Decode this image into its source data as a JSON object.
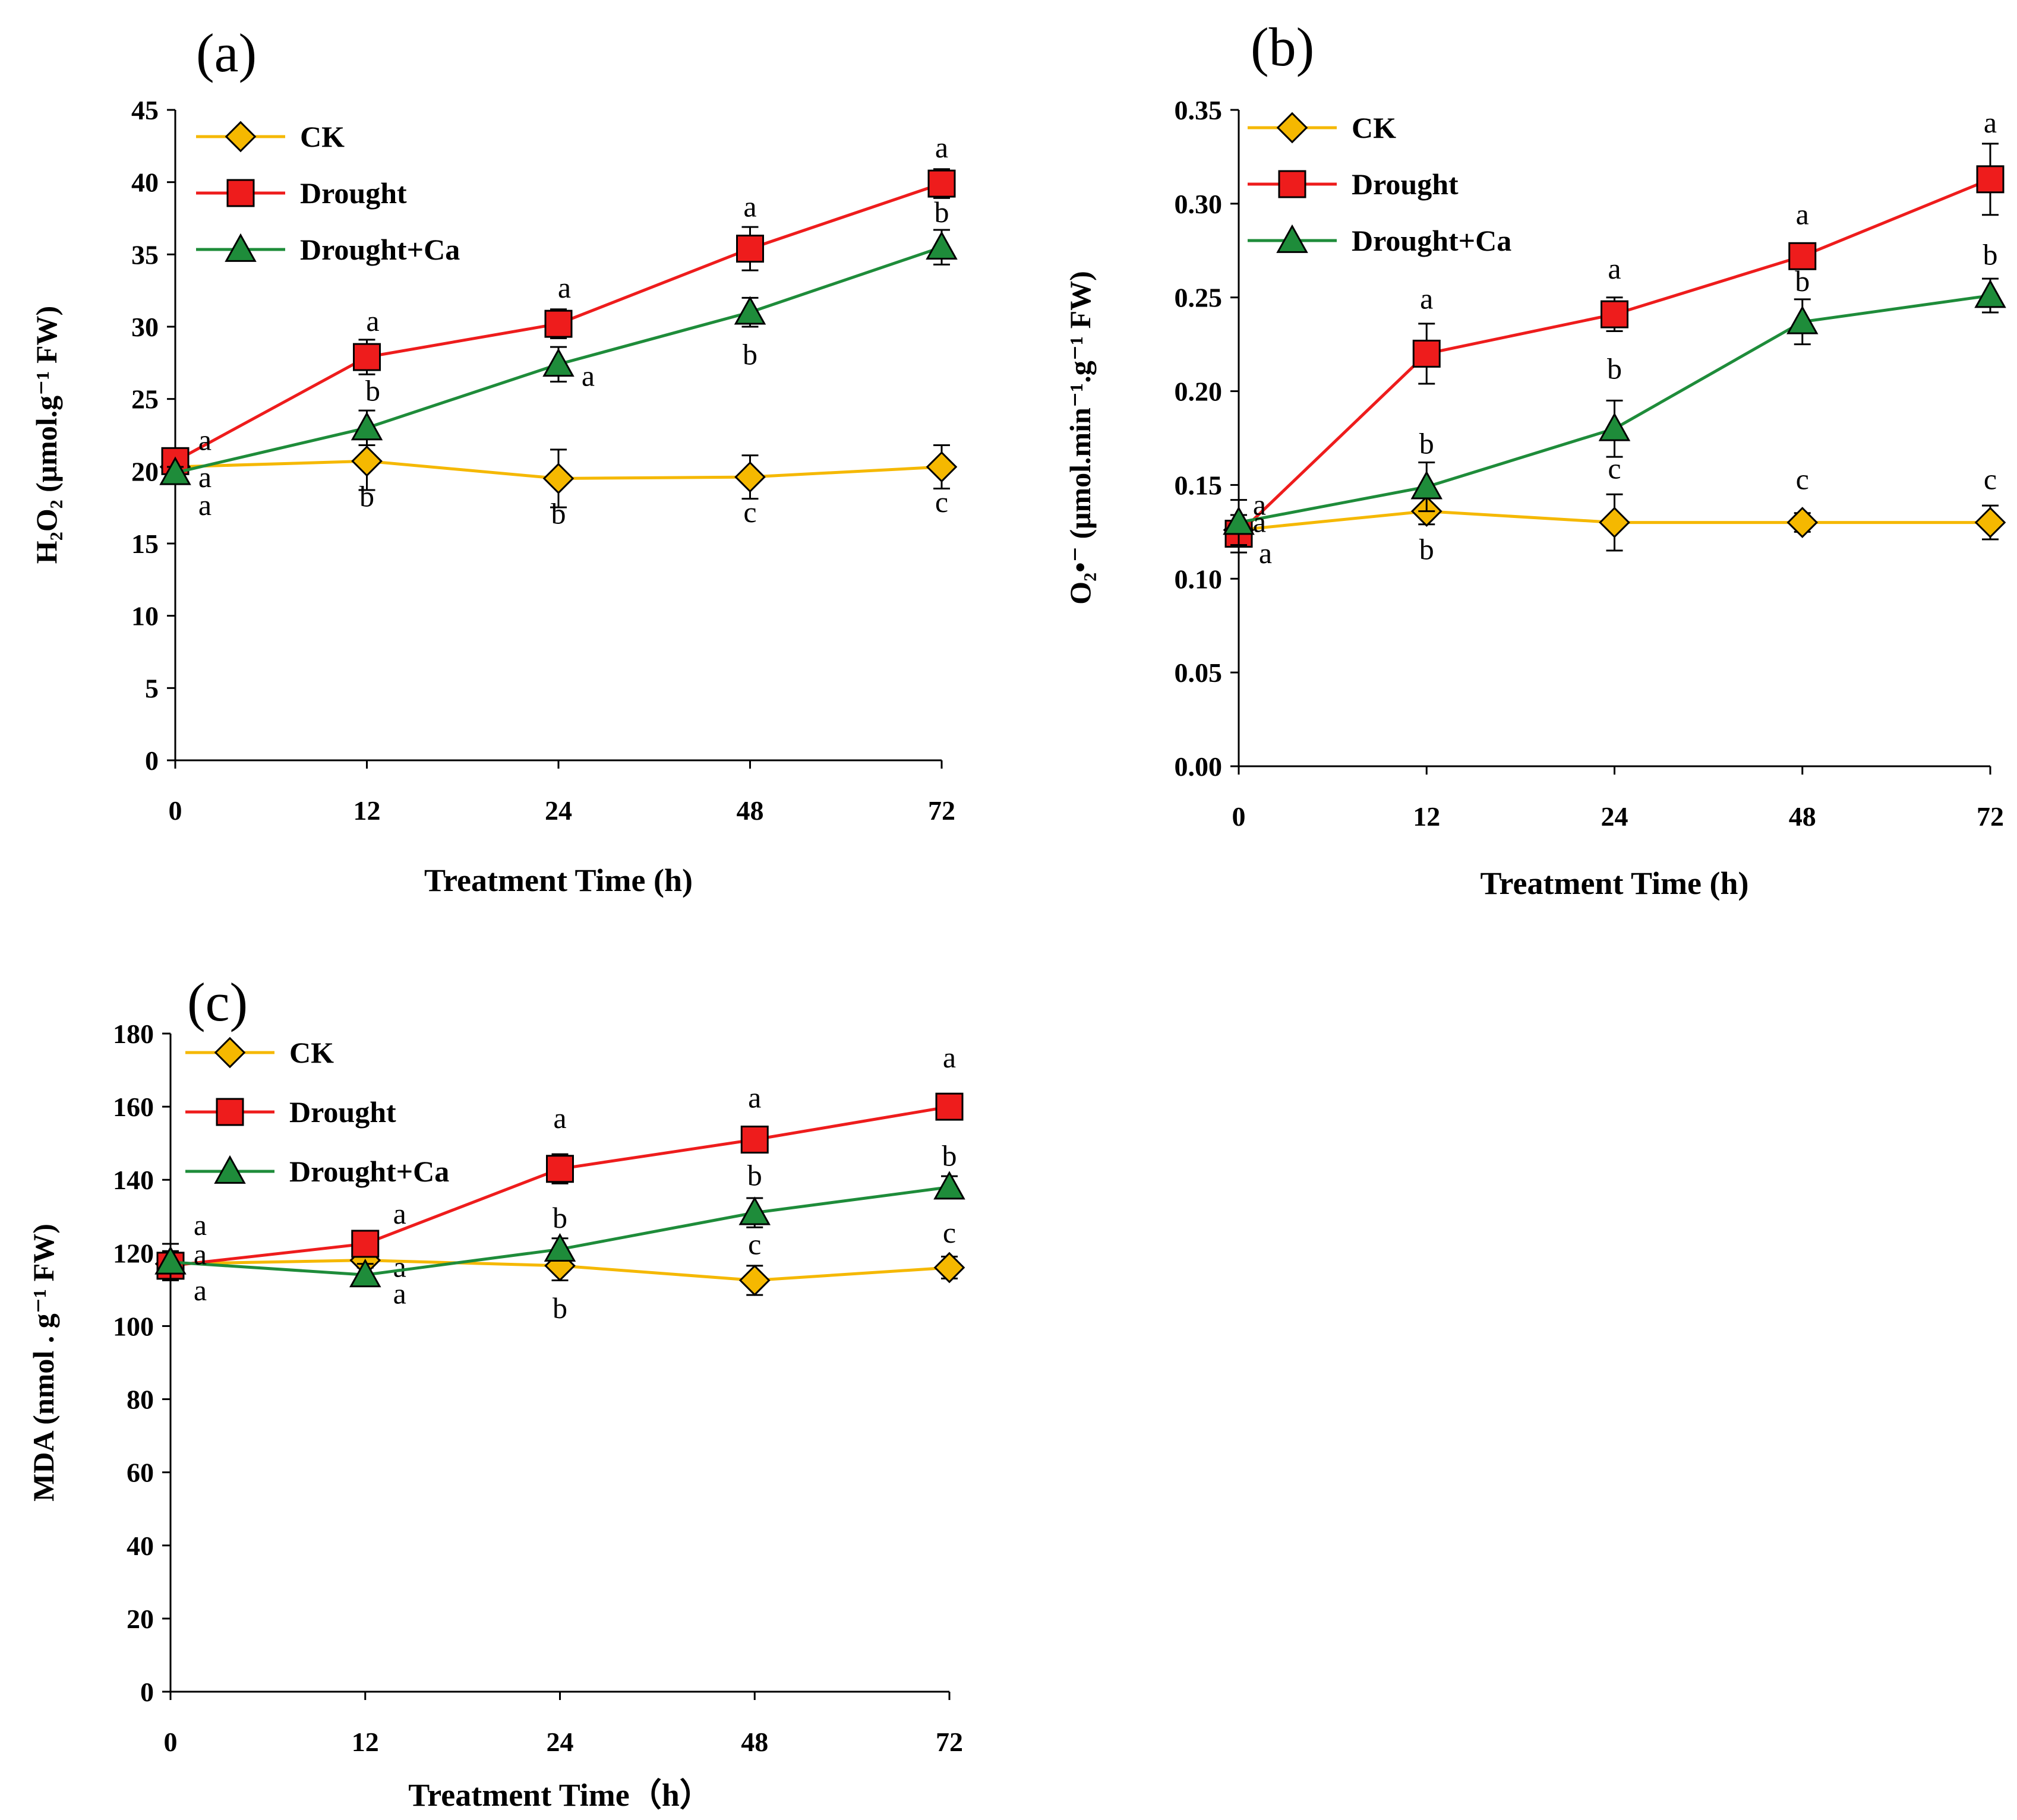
{
  "chart_data": [
    {
      "type": "line",
      "panel_label": "(a)",
      "categories": [
        "0",
        "12",
        "24",
        "48",
        "72"
      ],
      "ylabel": "H₂O₂ (μmol.g⁻¹ FW)",
      "xlabel": "Treatment Time (h)",
      "ylim": [
        0,
        45
      ],
      "yticks": [
        "0",
        "5",
        "10",
        "15",
        "20",
        "25",
        "30",
        "35",
        "40",
        "45"
      ],
      "series": [
        {
          "name": "CK",
          "color": "#f5b800",
          "marker": "diamond",
          "values": [
            20.3,
            20.7,
            19.5,
            19.6,
            20.3
          ],
          "errors": [
            0.5,
            2.0,
            2.0,
            1.5,
            1.5
          ],
          "letters": [
            "a",
            "b",
            "b",
            "c",
            "c"
          ]
        },
        {
          "name": "Drought",
          "color": "#ee1c1c",
          "marker": "square",
          "values": [
            20.7,
            27.9,
            30.2,
            35.4,
            39.9
          ],
          "errors": [
            0.8,
            1.2,
            1.0,
            1.5,
            1.0
          ],
          "letters": [
            "a",
            "a",
            "a",
            "a",
            "a"
          ]
        },
        {
          "name": "Drought+Ca",
          "color": "#1e8c3a",
          "marker": "triangle",
          "values": [
            19.9,
            23.0,
            27.4,
            31.0,
            35.5
          ],
          "errors": [
            0.4,
            1.2,
            1.2,
            1.0,
            1.2
          ],
          "letters": [
            "a",
            "b",
            "a",
            "b",
            "b"
          ]
        }
      ]
    },
    {
      "type": "line",
      "panel_label": "(b)",
      "categories": [
        "0",
        "12",
        "24",
        "48",
        "72"
      ],
      "ylabel": "O₂•⁻ (μmol.min⁻¹.g⁻¹ FW)",
      "xlabel": "Treatment Time (h)",
      "ylim": [
        0,
        0.35
      ],
      "yticks": [
        "0.00",
        "0.05",
        "0.10",
        "0.15",
        "0.20",
        "0.25",
        "0.30",
        "0.35"
      ],
      "series": [
        {
          "name": "CK",
          "color": "#f5b800",
          "marker": "diamond",
          "values": [
            0.126,
            0.136,
            0.13,
            0.13,
            0.13
          ],
          "errors": [
            0.004,
            0.007,
            0.015,
            0.005,
            0.009
          ],
          "letters": [
            "a",
            "b",
            "c",
            "c",
            "c"
          ]
        },
        {
          "name": "Drought",
          "color": "#ee1c1c",
          "marker": "square",
          "values": [
            0.124,
            0.22,
            0.241,
            0.272,
            0.313
          ],
          "errors": [
            0.01,
            0.016,
            0.009,
            0.006,
            0.019
          ],
          "letters": [
            "a",
            "a",
            "a",
            "a",
            "a"
          ]
        },
        {
          "name": "Drought+Ca",
          "color": "#1e8c3a",
          "marker": "triangle",
          "values": [
            0.13,
            0.149,
            0.18,
            0.237,
            0.251
          ],
          "errors": [
            0.012,
            0.013,
            0.015,
            0.012,
            0.009
          ],
          "letters": [
            "a",
            "b",
            "b",
            "b",
            "b"
          ]
        }
      ]
    },
    {
      "type": "line",
      "panel_label": "(c)",
      "categories": [
        "0",
        "12",
        "24",
        "48",
        "72"
      ],
      "ylabel": "MDA (nmol . g⁻¹ FW)",
      "xlabel": "Treatment Time（h）",
      "ylim": [
        0,
        180
      ],
      "yticks": [
        "0",
        "20",
        "40",
        "60",
        "80",
        "100",
        "120",
        "140",
        "160",
        "180"
      ],
      "series": [
        {
          "name": "CK",
          "color": "#f5b800",
          "marker": "diamond",
          "values": [
            117,
            118,
            116.5,
            112.5,
            116
          ],
          "errors": [
            3,
            2,
            4,
            4,
            3
          ],
          "letters": [
            "a",
            "a",
            "b",
            "c",
            "c"
          ]
        },
        {
          "name": "Drought",
          "color": "#ee1c1c",
          "marker": "square",
          "values": [
            116.5,
            122.5,
            143,
            151,
            160
          ],
          "errors": [
            4,
            3,
            4,
            3,
            3
          ],
          "letters": [
            "a",
            "a",
            "a",
            "a",
            "a"
          ]
        },
        {
          "name": "Drought+Ca",
          "color": "#1e8c3a",
          "marker": "triangle",
          "values": [
            117.5,
            114,
            121,
            131,
            138
          ],
          "errors": [
            5,
            3,
            3,
            4,
            3
          ],
          "letters": [
            "a",
            "a",
            "b",
            "b",
            "b"
          ]
        }
      ]
    }
  ]
}
